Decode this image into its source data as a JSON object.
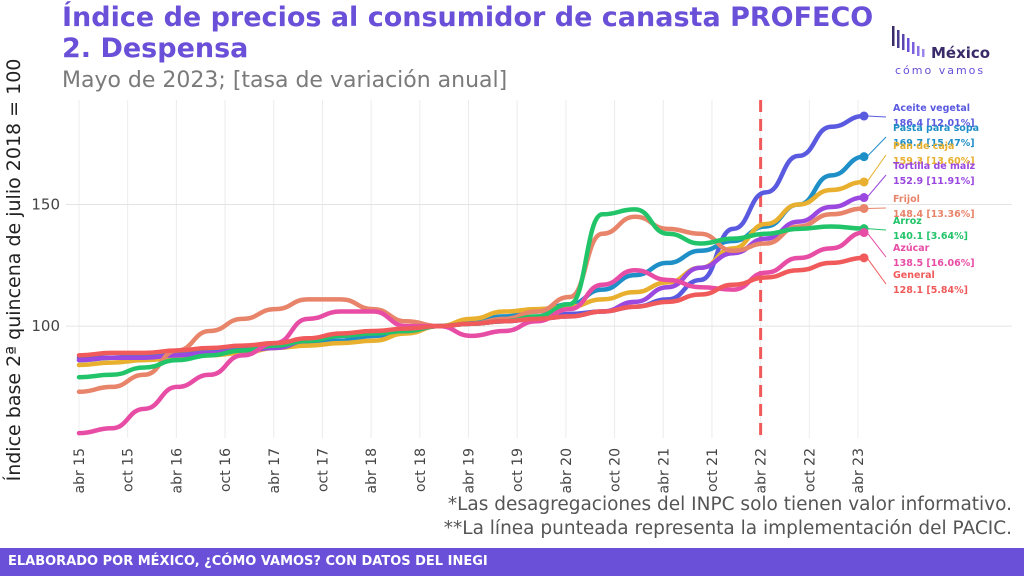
{
  "header": {
    "title_line1": "Índice de precios al consumidor de canasta PROFECO",
    "title_line2": "2. Despensa",
    "subtitle": "Mayo de 2023; [tasa de variación anual]"
  },
  "logo": {
    "brand": "México",
    "tagline": "cómo vamos",
    "icon": "bar-stripes-logo"
  },
  "notes": [
    "*Las desagregaciones del INPC solo tienen valor informativo.",
    "**La línea punteada representa la implementación del PACIC."
  ],
  "footer": {
    "text": "ELABORADO POR MÉXICO, ¿CÓMO VAMOS? CON DATOS DEL INEGI"
  },
  "chart_data": {
    "type": "line",
    "ylabel": "Índice base 2ª quincena de julio 2018 = 100",
    "xlabel": "",
    "x_ticks": [
      "abr 15",
      "oct 15",
      "abr 16",
      "oct 16",
      "abr 17",
      "oct 17",
      "abr 18",
      "oct 18",
      "abr 19",
      "oct 19",
      "abr 20",
      "oct 20",
      "abr 21",
      "oct 21",
      "abr 22",
      "oct 22",
      "abr 23"
    ],
    "y_ticks": [
      100,
      150
    ],
    "ylim": [
      54,
      193
    ],
    "grid": true,
    "vline": {
      "at": "abr 22",
      "style": "dashed",
      "color": "#f05a5a"
    },
    "series": [
      {
        "name": "Aceite vegetal",
        "color": "#5a5ae0",
        "end_label": "186.4 [12.01%]",
        "values": [
          87,
          87,
          88,
          89,
          90,
          91,
          92,
          93,
          94,
          96,
          98,
          100,
          101,
          102,
          103,
          105,
          106,
          108,
          111,
          119,
          140,
          155,
          170,
          182,
          186.4
        ]
      },
      {
        "name": "Pasta para sopa",
        "color": "#1f8fc8",
        "end_label": "169.7 [15.47%]",
        "values": [
          86,
          87,
          88,
          89,
          90,
          91,
          92,
          93,
          94,
          96,
          98,
          100,
          102,
          104,
          106,
          109,
          115,
          121,
          126,
          131,
          135,
          141,
          150,
          162,
          169.7
        ]
      },
      {
        "name": "Pan de caja",
        "color": "#e8b02e",
        "end_label": "159.3 [13.60%]",
        "values": [
          84,
          85,
          86,
          87,
          88,
          89,
          91,
          92,
          93,
          94,
          97,
          100,
          103,
          106,
          107,
          108,
          111,
          114,
          118,
          124,
          132,
          142,
          150,
          156,
          159.3
        ]
      },
      {
        "name": "Tortilla de maíz",
        "color": "#9a48e0",
        "end_label": "152.9 [11.91%]",
        "values": [
          86,
          87,
          87,
          88,
          89,
          90,
          91,
          94,
          96,
          97,
          98,
          100,
          101,
          102,
          103,
          104,
          106,
          110,
          116,
          124,
          130,
          136,
          143,
          149,
          152.9
        ]
      },
      {
        "name": "Frijol",
        "color": "#e8846a",
        "end_label": "148.4 [13.36%]",
        "values": [
          73,
          75,
          80,
          90,
          98,
          103,
          107,
          111,
          111,
          107,
          102,
          100,
          101,
          103,
          106,
          112,
          138,
          145,
          140,
          138,
          131,
          134,
          141,
          146,
          148.4
        ]
      },
      {
        "name": "Arroz",
        "color": "#22c46a",
        "end_label": "140.1 [3.64%]",
        "values": [
          79,
          80,
          83,
          86,
          88,
          90,
          92,
          94,
          96,
          97,
          98,
          100,
          101,
          102,
          104,
          109,
          146,
          148,
          138,
          134,
          136,
          138,
          140,
          141,
          140.1
        ]
      },
      {
        "name": "Azúcar",
        "color": "#e84da6",
        "end_label": "138.5 [16.06%]",
        "values": [
          56,
          58,
          66,
          75,
          80,
          88,
          93,
          103,
          106,
          106,
          100,
          100,
          96,
          98,
          102,
          107,
          117,
          123,
          119,
          116,
          115,
          122,
          128,
          132,
          138.5
        ]
      },
      {
        "name": "General",
        "color": "#f05a5a",
        "end_label": "128.1 [5.84%]",
        "values": [
          88,
          89,
          89,
          90,
          91,
          92,
          93,
          95,
          97,
          98,
          99,
          100,
          101,
          102,
          103,
          104,
          106,
          108,
          110,
          113,
          117,
          120,
          123,
          126,
          128.1
        ]
      }
    ]
  }
}
